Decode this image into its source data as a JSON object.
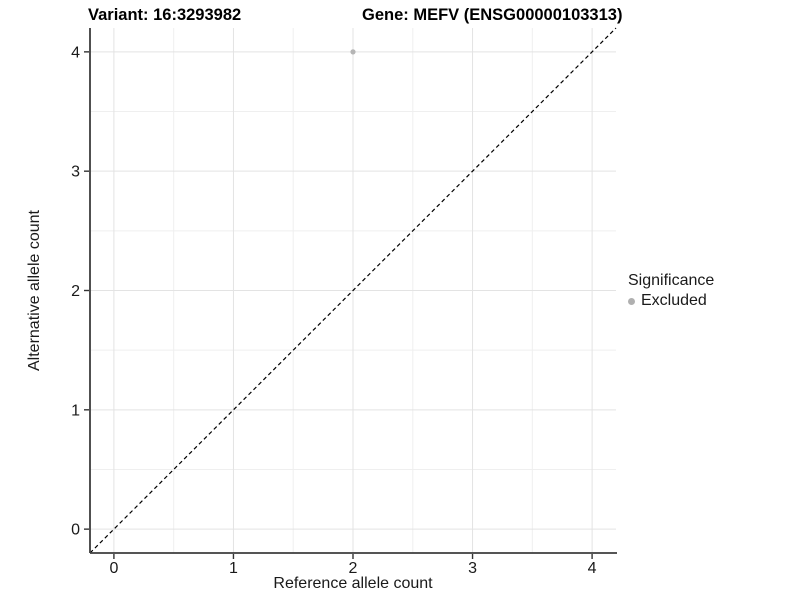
{
  "chart_data": {
    "type": "scatter",
    "title_left": "Variant: 16:3293982",
    "title_right": "Gene: MEFV (ENSG00000103313)",
    "xlabel": "Reference allele count",
    "ylabel": "Alternative allele count",
    "xlim": [
      -0.2,
      4.2
    ],
    "ylim": [
      -0.2,
      4.2
    ],
    "x_ticks": [
      0,
      1,
      2,
      3,
      4
    ],
    "y_ticks": [
      0,
      1,
      2,
      3,
      4
    ],
    "x_minor_ticks": [
      0.5,
      1.5,
      2.5,
      3.5
    ],
    "y_minor_ticks": [
      0.5,
      1.5,
      2.5,
      3.5
    ],
    "grid": "major-and-minor",
    "series": [
      {
        "name": "Excluded",
        "color": "#b5b5b5",
        "points": [
          [
            2,
            4
          ]
        ]
      }
    ],
    "reference_line": {
      "type": "identity",
      "from": [
        -0.2,
        -0.2
      ],
      "to": [
        4.2,
        4.2
      ],
      "style": "dashed",
      "color": "#000000"
    },
    "legend": {
      "title": "Significance",
      "position": "right",
      "entries": [
        {
          "label": "Excluded",
          "color": "#b0b0b0"
        }
      ]
    },
    "colors": {
      "grid_major": "#e3e3e3",
      "grid_minor": "#efefef",
      "axis_line": "#3d3d3d",
      "tick_mark": "#333333",
      "tick_label": "#1a1a1a",
      "panel_background": "#ffffff"
    }
  }
}
